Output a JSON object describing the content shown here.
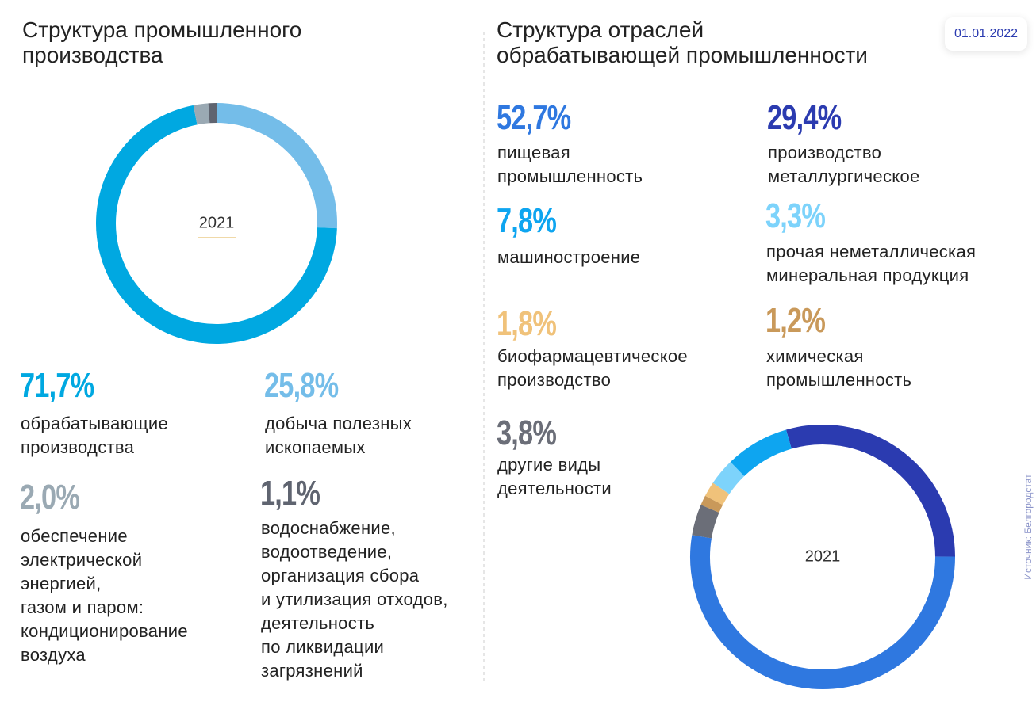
{
  "chart_data": [
    {
      "type": "pie",
      "title": "Структура промышленного\nпроизводства",
      "center_label": "2021",
      "categories": [
        "обрабатывающие\nпроизводства",
        "добыча полезных\nископаемых",
        "обеспечение\nэлектрической\nэнергией,\nгазом и паром:\nкондиционирование\nвоздуха",
        "водоснабжение,\nводоотведение,\nорганизация сбора\nи утилизация отходов,\nдеятельность\nпо ликвидации\nзагрязнений"
      ],
      "values": [
        71.7,
        25.8,
        2.0,
        1.1
      ],
      "value_labels": [
        "71,7%",
        "25,8%",
        "2,0%",
        "1,1%"
      ],
      "colors": [
        "#00a8e1",
        "#74bde9",
        "#9aa9b3",
        "#5f6470"
      ]
    },
    {
      "type": "pie",
      "title": "Структура отраслей\nобрабатывающей промышленности",
      "center_label": "2021",
      "categories": [
        "пищевая\nпромышленность",
        "производство\nметаллургическое",
        "машиностроение",
        "прочая неметаллическая\nминеральная продукция",
        "биофармацевтическое\nпроизводство",
        "химическая\nпромышленность",
        "другие виды\nдеятельности"
      ],
      "values": [
        52.7,
        29.4,
        7.8,
        3.3,
        1.8,
        1.2,
        3.8
      ],
      "value_labels": [
        "52,7%",
        "29,4%",
        "7,8%",
        "3,3%",
        "1,8%",
        "1,2%",
        "3,8%"
      ],
      "colors": [
        "#2f78e0",
        "#2b3bb0",
        "#0ea5f0",
        "#7dd3fb",
        "#f0c27a",
        "#c9995a",
        "#6b6e78"
      ]
    }
  ],
  "date": "01.01.2022",
  "source": "Источник: Белгородстат"
}
